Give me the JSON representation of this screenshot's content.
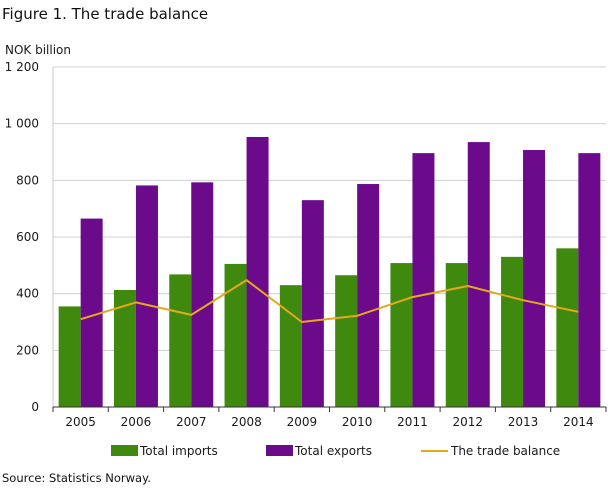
{
  "title": "Figure 1. The trade balance",
  "source": "Source: Statistics Norway.",
  "colors": {
    "imports": "#3f8a0e",
    "exports": "#6b0a8a",
    "balance": "#e4a91a",
    "grid": "#d0d0d0"
  },
  "chart_data": {
    "type": "bar",
    "ylabel": "NOK billion",
    "ylim": [
      0,
      1200
    ],
    "yticks": [
      0,
      200,
      400,
      600,
      800,
      1000,
      1200
    ],
    "ytick_labels": [
      "0",
      "200",
      "400",
      "600",
      "800",
      "1 000",
      "1 200"
    ],
    "grid": true,
    "legend_position": "bottom",
    "categories": [
      "2005",
      "2006",
      "2007",
      "2008",
      "2009",
      "2010",
      "2011",
      "2012",
      "2013",
      "2014"
    ],
    "series": [
      {
        "name": "Total imports",
        "type": "bar",
        "values": [
          355,
          413,
          468,
          505,
          430,
          465,
          508,
          508,
          530,
          560
        ]
      },
      {
        "name": "Total exports",
        "type": "bar",
        "values": [
          665,
          782,
          793,
          953,
          730,
          787,
          896,
          935,
          907,
          896
        ]
      },
      {
        "name": "The trade balance",
        "type": "line",
        "values": [
          310,
          369,
          325,
          448,
          300,
          322,
          388,
          427,
          377,
          336
        ]
      }
    ]
  }
}
